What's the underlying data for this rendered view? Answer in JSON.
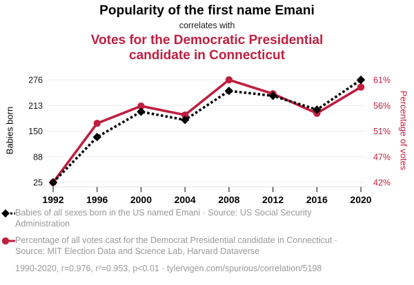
{
  "header": {
    "title": "Popularity of the first name Emani",
    "connector": "correlates with",
    "subtitle": "Votes for the Democratic Presidential candidate in Connecticut"
  },
  "chart_data": {
    "type": "line",
    "title": "Popularity of the first name Emani correlates with Votes for the Democratic Presidential candidate in Connecticut",
    "x": [
      "1992",
      "1996",
      "2000",
      "2004",
      "2008",
      "2012",
      "2016",
      "2020"
    ],
    "series": [
      {
        "name": "Babies of all sexes born in the US named Emani",
        "axis": "left",
        "color": "#000000",
        "style": "dashed-diamond",
        "values": [
          25,
          136,
          198,
          178,
          249,
          237,
          203,
          276
        ]
      },
      {
        "name": "Percentage of all votes cast for the Democrat Presidential candidate in Connecticut",
        "axis": "right",
        "color": "#c01f3f",
        "style": "solid-circle",
        "values": [
          42.2,
          52.8,
          55.9,
          54.3,
          60.6,
          58.1,
          54.6,
          59.3
        ]
      }
    ],
    "left_axis": {
      "label": "Babies born",
      "ticks": [
        "25",
        "88",
        "150",
        "213",
        "276"
      ],
      "range": [
        25,
        276
      ]
    },
    "right_axis": {
      "label": "Percentage of votes",
      "ticks": [
        "42%",
        "47%",
        "51%",
        "56%",
        "61%"
      ],
      "range": [
        42.2,
        60.6
      ]
    },
    "grid": "horizontal",
    "legend_position": "bottom"
  },
  "legend": {
    "items": [
      {
        "marker": "black-diamond-dashed",
        "text": "Babies of all sexes born in the US named Emani · Source: US Social Security Administration"
      },
      {
        "marker": "red-circle-solid",
        "text": "Percentage of all votes cast for the Democrat Presidential candidate in Connecticut · Source: MIT Election Data and Science Lab, Harvard Dataverse"
      }
    ]
  },
  "footer": {
    "text": "1990-2020, r=0.976, r²=0.953, p<0.01 · tylervigen.com/spurious/correlation/5198"
  },
  "colors": {
    "accent_red": "#c01f3f",
    "title_black": "#000000",
    "legend_text_gray": "#999999",
    "grid_gray": "#ececec"
  }
}
